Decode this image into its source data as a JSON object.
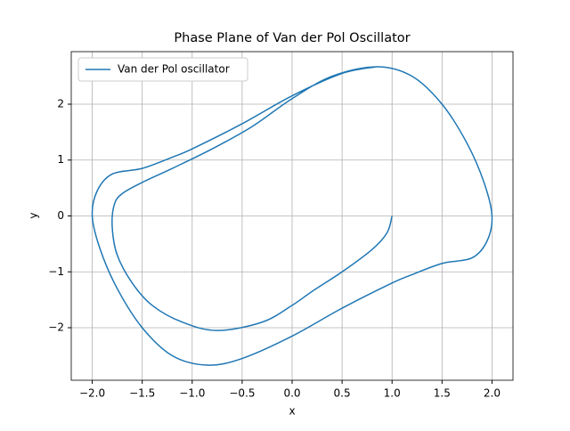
{
  "chart_data": {
    "type": "line",
    "title": "Phase Plane of Van der Pol Oscillator",
    "xlabel": "x",
    "ylabel": "y",
    "x": [
      1,
      0.95,
      0.8,
      0.5,
      0.2,
      0,
      -0.3,
      -0.75,
      -1.1,
      -1.4,
      -1.6,
      -1.75,
      -1.8,
      -1.78,
      -1.7,
      -1.5,
      -1.2,
      -0.8,
      -0.4,
      0,
      0.4,
      0.85,
      1.2,
      1.5,
      1.75,
      1.92,
      2.0,
      1.95,
      1.8,
      1.5,
      1.2,
      1.0,
      0.5,
      0,
      -0.5,
      -0.85,
      -1.2,
      -1.5,
      -1.75,
      -1.92,
      -2.0,
      -1.95,
      -1.8,
      -1.5,
      -1.2,
      -1.0,
      -0.5,
      0,
      0.5,
      0.85
    ],
    "series": [
      {
        "name": "Van der Pol oscillator",
        "color": "#1f77b4",
        "values": [
          0,
          -0.3,
          -0.6,
          -1.0,
          -1.35,
          -1.6,
          -1.9,
          -2.05,
          -1.9,
          -1.6,
          -1.2,
          -0.7,
          -0.2,
          0.2,
          0.4,
          0.6,
          0.85,
          1.2,
          1.6,
          2.1,
          2.5,
          2.67,
          2.5,
          2.0,
          1.3,
          0.6,
          0,
          -0.45,
          -0.75,
          -0.85,
          -1.05,
          -1.2,
          -1.65,
          -2.15,
          -2.55,
          -2.67,
          -2.5,
          -2.0,
          -1.3,
          -0.6,
          0,
          0.45,
          0.75,
          0.85,
          1.05,
          1.2,
          1.65,
          2.15,
          2.55,
          2.67
        ]
      }
    ],
    "xlim": [
      -2.21,
      2.21
    ],
    "ylim": [
      -2.94,
      2.94
    ],
    "xticks": [
      {
        "value": -2,
        "label": "−2.0"
      },
      {
        "value": -1.5,
        "label": "−1.5"
      },
      {
        "value": -1,
        "label": "−1.0"
      },
      {
        "value": -0.5,
        "label": "−0.5"
      },
      {
        "value": 0,
        "label": "0.0"
      },
      {
        "value": 0.5,
        "label": "0.5"
      },
      {
        "value": 1,
        "label": "1.0"
      },
      {
        "value": 1.5,
        "label": "1.5"
      },
      {
        "value": 2,
        "label": "2.0"
      }
    ],
    "yticks": [
      {
        "value": -2,
        "label": "−2"
      },
      {
        "value": -1,
        "label": "−1"
      },
      0,
      1,
      2
    ],
    "grid": true,
    "legend": "upper left"
  }
}
